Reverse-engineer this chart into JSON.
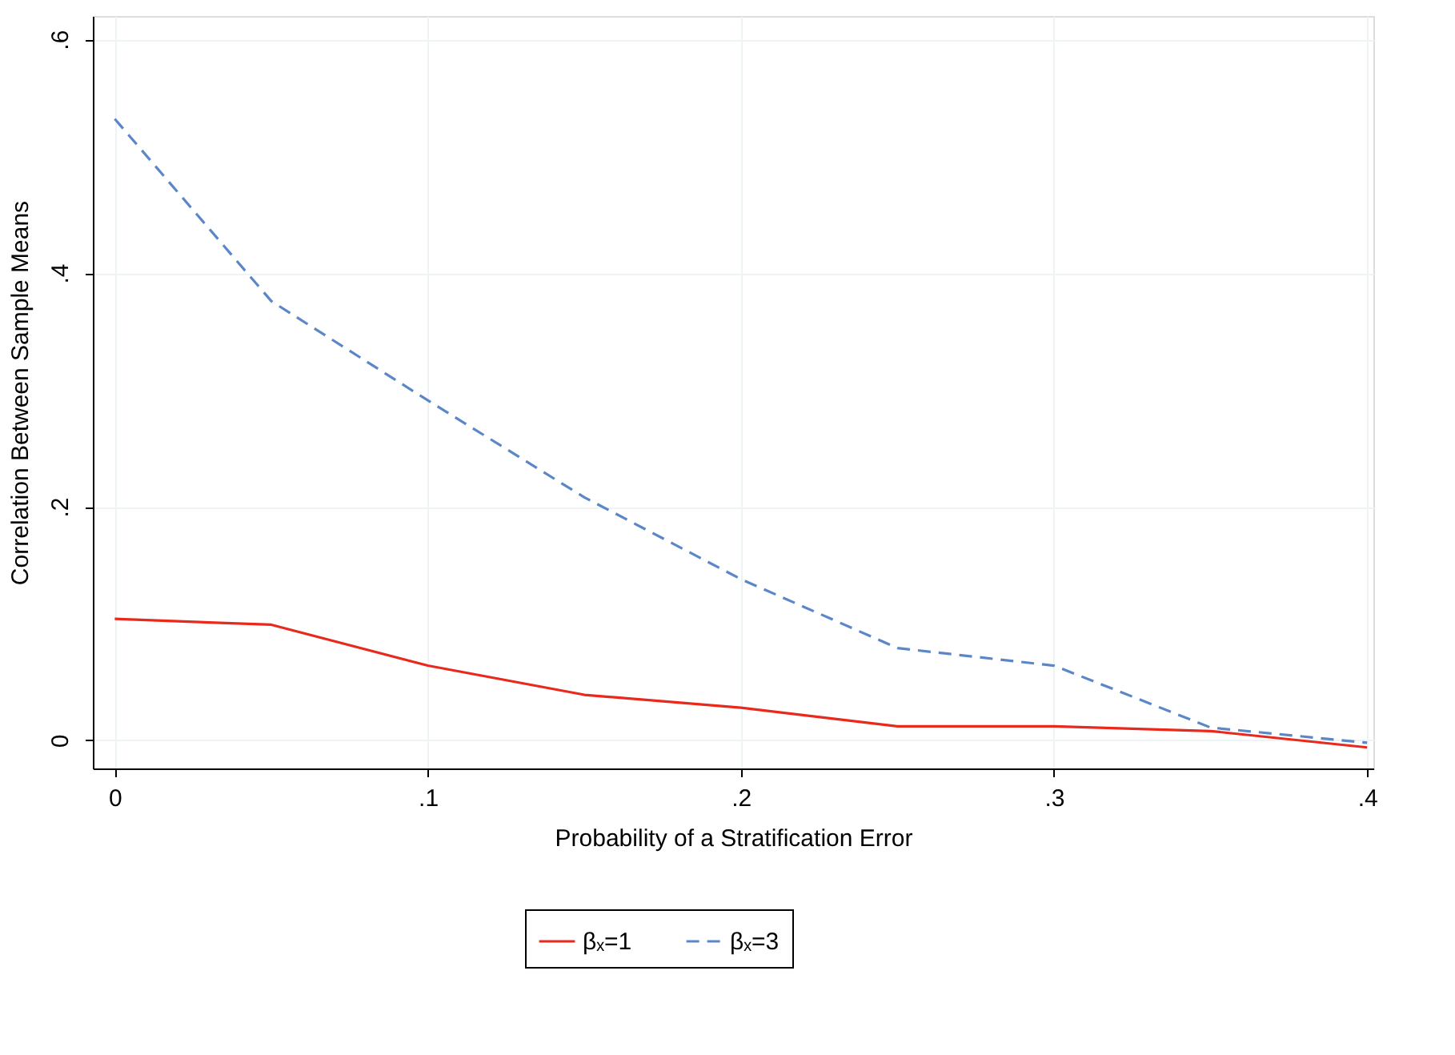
{
  "chart_data": {
    "type": "line",
    "xlabel": "Probability of a Stratification Error",
    "ylabel": "Correlation Between Sample Means",
    "x": [
      0,
      0.05,
      0.1,
      0.15,
      0.2,
      0.25,
      0.3,
      0.35,
      0.4
    ],
    "series": [
      {
        "name": "βₓ=1",
        "color": "#e8291c",
        "line_style": "solid",
        "values": [
          0.104,
          0.099,
          0.064,
          0.039,
          0.028,
          0.012,
          0.012,
          0.008,
          -0.006
        ]
      },
      {
        "name": "βₓ=3",
        "color": "#5b87c9",
        "line_style": "dashed",
        "values": [
          0.532,
          0.376,
          0.291,
          0.208,
          0.138,
          0.079,
          0.064,
          0.011,
          -0.002
        ]
      }
    ],
    "xlim": [
      -0.007,
      0.402
    ],
    "ylim": [
      -0.024,
      0.62
    ],
    "xticks": [
      0,
      {
        "value": 0.1,
        "label": ".1"
      },
      {
        "value": 0.2,
        "label": ".2"
      },
      {
        "value": 0.3,
        "label": ".3"
      },
      {
        "value": 0.4,
        "label": ".4"
      }
    ],
    "yticks": [
      0,
      {
        "value": 0.2,
        "label": ".2"
      },
      {
        "value": 0.4,
        "label": ".4"
      },
      {
        "value": 0.6,
        "label": ".6"
      }
    ],
    "grid": true,
    "legend": "bottom",
    "marker": "none"
  }
}
